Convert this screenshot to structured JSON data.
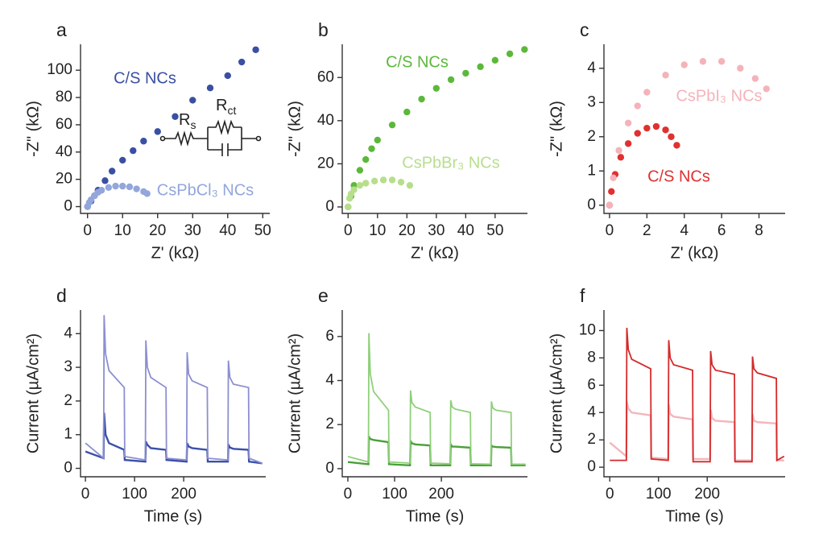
{
  "chart_data": [
    {
      "type": "scatter",
      "panel": "a",
      "xlabel": "Z' (kΩ)",
      "ylabel": "-Z\" (kΩ)",
      "xlim": [
        -2,
        52
      ],
      "ylim": [
        -5,
        119
      ],
      "xticks": [
        0,
        10,
        20,
        30,
        40,
        50
      ],
      "yticks": [
        0,
        20,
        40,
        60,
        80,
        100
      ],
      "series": [
        {
          "name": "C/S NCs",
          "color": "#3a4fa3",
          "x": [
            0,
            1,
            2,
            3,
            5,
            7,
            10,
            13,
            16,
            20,
            25,
            30,
            35,
            40,
            44,
            48
          ],
          "values": [
            0,
            4,
            8,
            12,
            19,
            26,
            34,
            41,
            48,
            55,
            66,
            78,
            87,
            96,
            106,
            115
          ]
        },
        {
          "name": "CsPbCl₃ NCs",
          "color": "#93a6dc",
          "x": [
            0,
            0.5,
            1,
            2,
            3,
            4,
            6,
            8,
            10,
            12,
            14,
            16,
            17
          ],
          "values": [
            0,
            3,
            5,
            8,
            10.5,
            12,
            14,
            15,
            15,
            14.5,
            13,
            11,
            9.5
          ]
        }
      ]
    },
    {
      "type": "scatter",
      "panel": "b",
      "xlabel": "Z' (kΩ)",
      "ylabel": "-Z\" (kΩ)",
      "xlim": [
        -2,
        61
      ],
      "ylim": [
        -3,
        75.4
      ],
      "xticks": [
        0,
        10,
        20,
        30,
        40,
        50
      ],
      "yticks": [
        0,
        20,
        40,
        60
      ],
      "series": [
        {
          "name": "C/S NCs",
          "color": "#5cb83a",
          "x": [
            0,
            1,
            2,
            4,
            6,
            8,
            10,
            15,
            20,
            25,
            30,
            35,
            40,
            45,
            50,
            55,
            60
          ],
          "values": [
            0,
            5,
            10,
            17,
            22,
            27,
            31,
            38,
            44,
            50,
            55,
            59,
            62,
            65,
            68,
            71,
            73
          ]
        },
        {
          "name": "CsPbBr₃ NCs",
          "color": "#b8de8c",
          "x": [
            0,
            0.5,
            1,
            2,
            4,
            6,
            9,
            12,
            15,
            18,
            21
          ],
          "values": [
            0,
            4,
            6,
            8,
            10,
            11,
            12,
            12.5,
            12.5,
            11.5,
            10
          ]
        }
      ]
    },
    {
      "type": "scatter",
      "panel": "c",
      "xlabel": "Z' (kΩ)",
      "ylabel": "-Z\" (kΩ)",
      "xlim": [
        -0.3,
        9.4
      ],
      "ylim": [
        -0.24,
        4.7
      ],
      "xticks": [
        0,
        2,
        4,
        6,
        8
      ],
      "yticks": [
        0,
        1,
        2,
        3,
        4
      ],
      "series": [
        {
          "name": "C/S NCs",
          "color": "#e03030",
          "x": [
            0,
            0.1,
            0.3,
            0.6,
            1,
            1.5,
            2,
            2.5,
            3,
            3.3,
            3.6
          ],
          "values": [
            0,
            0.4,
            0.9,
            1.4,
            1.8,
            2.1,
            2.25,
            2.3,
            2.2,
            2.0,
            1.75
          ]
        },
        {
          "name": "CsPbI₃ NCs",
          "color": "#f4b3ba",
          "x": [
            0,
            0.2,
            0.5,
            1,
            1.5,
            2,
            3,
            4,
            5,
            6,
            7,
            7.8,
            8.4
          ],
          "values": [
            0,
            0.8,
            1.6,
            2.4,
            2.9,
            3.3,
            3.8,
            4.1,
            4.2,
            4.2,
            4.0,
            3.7,
            3.4
          ]
        }
      ]
    },
    {
      "type": "line",
      "panel": "d",
      "xlabel": "Time (s)",
      "ylabel": "Current (µA/cm²)",
      "xlim": [
        -10,
        367
      ],
      "ylim": [
        -0.25,
        4.7
      ],
      "xticks": [
        0,
        100,
        200
      ],
      "yticks": [
        0,
        1,
        2,
        3,
        4
      ],
      "x": [
        0,
        37,
        38,
        41,
        48,
        79,
        80,
        122,
        123,
        126,
        133,
        164,
        165,
        206,
        207,
        210,
        217,
        248,
        249,
        290,
        291,
        294,
        301,
        332,
        333,
        360
      ],
      "series": [
        {
          "color": "#3b50a8",
          "values": [
            0.5,
            0.3,
            1.65,
            1.0,
            0.75,
            0.55,
            0.25,
            0.2,
            0.8,
            0.7,
            0.6,
            0.55,
            0.25,
            0.2,
            0.75,
            0.65,
            0.6,
            0.55,
            0.2,
            0.2,
            0.7,
            0.62,
            0.58,
            0.55,
            0.2,
            0.15
          ]
        },
        {
          "color": "#8c8fd0",
          "values": [
            0.75,
            0.3,
            4.55,
            3.4,
            2.9,
            2.4,
            0.35,
            0.25,
            3.8,
            3.0,
            2.7,
            2.4,
            0.3,
            0.25,
            3.45,
            2.8,
            2.6,
            2.4,
            0.3,
            0.25,
            3.2,
            2.7,
            2.5,
            2.4,
            0.3,
            0.15
          ]
        }
      ]
    },
    {
      "type": "line",
      "panel": "e",
      "xlabel": "Time (s)",
      "ylabel": "Current (µA/cm²)",
      "xlim": [
        -12,
        384
      ],
      "ylim": [
        -0.37,
        7.2
      ],
      "xticks": [
        0,
        100,
        200
      ],
      "yticks": [
        0,
        2,
        4,
        6
      ],
      "x": [
        0,
        44,
        45,
        48,
        55,
        87,
        88,
        133,
        134,
        137,
        144,
        176,
        177,
        219,
        220,
        223,
        230,
        262,
        263,
        306,
        307,
        310,
        317,
        349,
        350,
        380
      ],
      "series": [
        {
          "color": "#4aa03a",
          "values": [
            0.3,
            0.2,
            1.45,
            1.35,
            1.3,
            1.2,
            0.2,
            0.15,
            1.25,
            1.15,
            1.1,
            1.05,
            0.15,
            0.15,
            1.1,
            1.0,
            1.0,
            0.95,
            0.15,
            0.15,
            1.05,
            1.0,
            0.98,
            0.95,
            0.15,
            0.15
          ]
        },
        {
          "color": "#8fd07a",
          "values": [
            0.55,
            0.3,
            6.15,
            4.3,
            3.5,
            2.65,
            0.3,
            0.25,
            3.55,
            3.0,
            2.8,
            2.55,
            0.25,
            0.22,
            3.1,
            2.8,
            2.7,
            2.55,
            0.22,
            0.2,
            3.05,
            2.75,
            2.65,
            2.55,
            0.2,
            0.2
          ]
        }
      ]
    },
    {
      "type": "line",
      "panel": "f",
      "xlabel": "Time (s)",
      "ylabel": "Current (µA/cm²)",
      "xlim": [
        -12,
        360
      ],
      "ylim": [
        -0.7,
        11.5
      ],
      "xticks": [
        0,
        100,
        200
      ],
      "yticks": [
        0,
        2,
        4,
        6,
        8,
        10
      ],
      "x": [
        0,
        34,
        35,
        38,
        45,
        84,
        85,
        120,
        121,
        124,
        131,
        170,
        171,
        206,
        207,
        210,
        217,
        256,
        257,
        292,
        293,
        296,
        303,
        342,
        343,
        358
      ],
      "series": [
        {
          "color": "#f3b6bc",
          "values": [
            1.8,
            0.8,
            4.8,
            4.3,
            4.0,
            3.8,
            0.7,
            0.6,
            4.6,
            3.9,
            3.7,
            3.5,
            0.6,
            0.6,
            4.2,
            3.6,
            3.4,
            3.3,
            0.5,
            0.5,
            3.9,
            3.4,
            3.3,
            3.2,
            0.5,
            0.5
          ]
        },
        {
          "color": "#d42a2a",
          "values": [
            0.5,
            0.5,
            10.2,
            8.6,
            7.9,
            7.2,
            0.6,
            0.5,
            9.3,
            8.0,
            7.5,
            7.1,
            0.4,
            0.4,
            8.5,
            7.5,
            7.1,
            6.8,
            0.4,
            0.4,
            8.1,
            7.2,
            6.9,
            6.5,
            0.5,
            0.8
          ]
        }
      ]
    }
  ],
  "inset": {
    "labels": [
      {
        "main": "R",
        "sub": "s"
      },
      {
        "main": "R",
        "sub": "ct"
      }
    ]
  }
}
